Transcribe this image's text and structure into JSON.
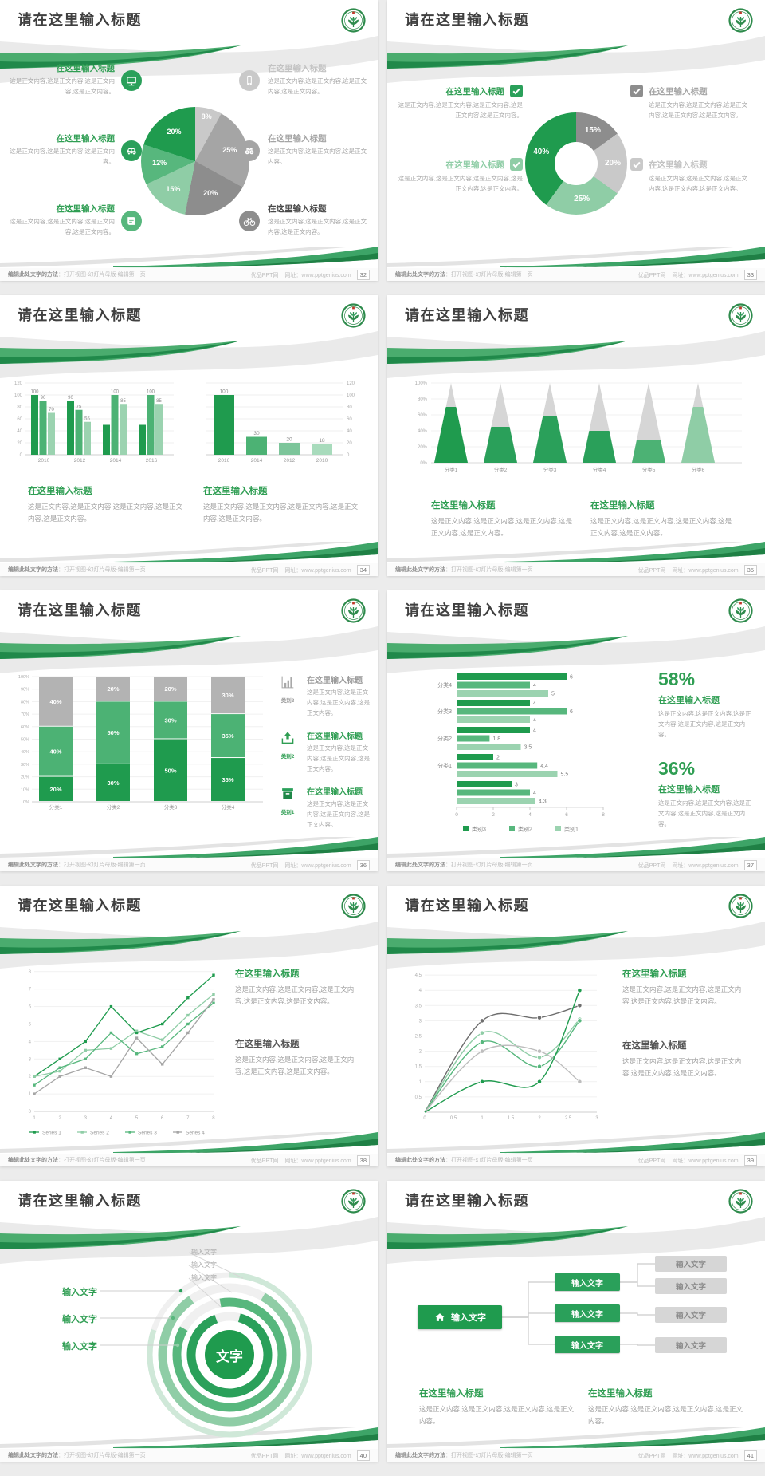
{
  "page": {
    "background": "#ececec",
    "grid": {
      "columns": 2,
      "rows": 5
    }
  },
  "theme": {
    "green_dark": "#1f9b4e",
    "green": "#2aa05a",
    "green_mid": "#57b77d",
    "green_light": "#8fcda6",
    "green_pale": "#cfe8d8",
    "gray_dark": "#8d8d8d",
    "gray": "#a5a5a5",
    "gray_light": "#c9c9c9",
    "title_text": "#3f3f3f",
    "body_text": "#a2a2a2"
  },
  "footer": {
    "left_strong": "编辑此处文字的方法",
    "left_rest": "：打开视图-幻灯片母版-编辑第一页",
    "site": "优品PPT网",
    "url": "网址：www.pptgenius.com"
  },
  "slides": [
    {
      "page": "32",
      "title": "请在这里输入标题",
      "callouts": [
        {
          "icon": "monitor-icon",
          "icon_bg": "#2aa05a",
          "title": "在这里输入标题",
          "title_color": "#2f9e53",
          "body": "这是正文内容,这是正文内容,这是正文内容,这是正文内容。"
        },
        {
          "icon": "car-icon",
          "icon_bg": "#2aa05a",
          "title": "在这里输入标题",
          "title_color": "#2f9e53",
          "body": "这是正文内容,这是正文内容,这是正文内容。"
        },
        {
          "icon": "book-icon",
          "icon_bg": "#57b77d",
          "title": "在这里输入标题",
          "title_color": "#2f9e53",
          "body": "这是正文内容,这是正文内容,这是正文内容,这是正文内容。"
        },
        {
          "icon": "phone-icon",
          "icon_bg": "#c9c9c9",
          "title": "在这里输入标题",
          "title_color": "#c3c3c3",
          "body": "这是正文内容,这是正文内容,这是正文内容,这是正文内容。"
        },
        {
          "icon": "binoculars-icon",
          "icon_bg": "#a5a5a5",
          "title": "在这里输入标题",
          "title_color": "#a5a5a5",
          "body": "这是正文内容,这是正文内容,这是正文内容。"
        },
        {
          "icon": "bicycle-icon",
          "icon_bg": "#8d8d8d",
          "title": "在这里输入标题",
          "title_color": "#4a4a4a",
          "body": "这是正文内容,这是正文内容,这是正文内容,这是正文内容。"
        }
      ]
    },
    {
      "page": "33",
      "title": "请在这里输入标题",
      "callouts": [
        {
          "icon": "check-icon",
          "icon_bg": "#2aa05a",
          "title": "在这里输入标题",
          "title_color": "#2f9e53",
          "body": "这是正文内容,这是正文内容,这是正文内容,这是正文内容,这是正文内容。"
        },
        {
          "icon": "check-icon",
          "icon_bg": "#8fcda6",
          "title": "在这里输入标题",
          "title_color": "#8fcda6",
          "body": "这是正文内容,这是正文内容,这是正文内容,这是正文内容,这是正文内容。"
        },
        {
          "icon": "check-icon",
          "icon_bg": "#8d8d8d",
          "title": "在这里输入标题",
          "title_color": "#a5a5a5",
          "body": "这是正文内容,这是正文内容,这是正文内容,这是正文内容,这是正文内容。"
        },
        {
          "icon": "check-icon",
          "icon_bg": "#c9c9c9",
          "title": "在这里输入标题",
          "title_color": "#c3c3c3",
          "body": "这是正文内容,这是正文内容,这是正文内容,这是正文内容,这是正文内容。"
        }
      ]
    },
    {
      "page": "34",
      "title": "请在这里输入标题",
      "sections": [
        {
          "title": "在这里输入标题",
          "title_color": "#2f9e53",
          "body": "这是正文内容,这是正文内容,这是正文内容,这是正文内容,这是正文内容。"
        },
        {
          "title": "在这里输入标题",
          "title_color": "#2f9e53",
          "body": "这是正文内容,这是正文内容,这是正文内容,这是正文内容,这是正文内容。"
        }
      ]
    },
    {
      "page": "35",
      "title": "请在这里输入标题",
      "sections": [
        {
          "title": "在这里输入标题",
          "title_color": "#2f9e53",
          "body": "这是正文内容,这是正文内容,这是正文内容,这是正文内容,这是正文内容。"
        },
        {
          "title": "在这里输入标题",
          "title_color": "#2f9e53",
          "body": "这是正文内容,这是正文内容,这是正文内容,这是正文内容,这是正文内容。"
        }
      ]
    },
    {
      "page": "36",
      "title": "请在这里输入标题",
      "items": [
        {
          "icon": "bar-chart-icon",
          "label": "类别3",
          "label_color": "#9a9a9a",
          "title": "在这里输入标题",
          "title_color": "#9a9a9a",
          "body": "这是正文内容,这是正文内容,这是正文内容,这是正文内容。"
        },
        {
          "icon": "upload-icon",
          "label": "类别2",
          "label_color": "#2f9e53",
          "title": "在这里输入标题",
          "title_color": "#2f9e53",
          "body": "这是正文内容,这是正文内容,这是正文内容,这是正文内容。"
        },
        {
          "icon": "box-icon",
          "label": "类别1",
          "label_color": "#2f9e53",
          "title": "在这里输入标题",
          "title_color": "#2f9e53",
          "body": "这是正文内容,这是正文内容,这是正文内容,这是正文内容。"
        }
      ]
    },
    {
      "page": "37",
      "title": "请在这里输入标题",
      "stats": [
        {
          "value": "58%",
          "title": "在这里输入标题",
          "body": "这是正文内容,这是正文内容,这是正文内容,这是正文内容,这是正文内容。"
        },
        {
          "value": "36%",
          "title": "在这里输入标题",
          "body": "这是正文内容,这是正文内容,这是正文内容,这是正文内容,这是正文内容。"
        }
      ]
    },
    {
      "page": "38",
      "title": "请在这里输入标题",
      "sections": [
        {
          "title": "在这里输入标题",
          "title_color": "#2f9e53",
          "body": "这是正文内容,这是正文内容,这是正文内容,这是正文内容,这是正文内容。"
        },
        {
          "title": "在这里输入标题",
          "title_color": "#555555",
          "body": "这是正文内容,这是正文内容,这是正文内容,这是正文内容,这是正文内容。"
        }
      ]
    },
    {
      "page": "39",
      "title": "请在这里输入标题",
      "sections": [
        {
          "title": "在这里输入标题",
          "title_color": "#2f9e53",
          "body": "这是正文内容,这是正文内容,这是正文内容,这是正文内容,这是正文内容。"
        },
        {
          "title": "在这里输入标题",
          "title_color": "#555555",
          "body": "这是正文内容,这是正文内容,这是正文内容,这是正文内容,这是正文内容。"
        }
      ]
    },
    {
      "page": "40",
      "title": "请在这里输入标题",
      "rings": {
        "center_label": "文字",
        "left_labels": [
          "输入文字",
          "输入文字",
          "输入文字"
        ],
        "top_labels": [
          "输入文字",
          "输入文字",
          "输入文字"
        ]
      }
    },
    {
      "page": "41",
      "title": "请在这里输入标题",
      "flow": {
        "root_label": "输入文字",
        "mid_labels": [
          "输入文字",
          "输入文字",
          "输入文字"
        ],
        "leaf_labels": [
          "输入文字",
          "输入文字",
          "输入文字",
          "输入文字"
        ]
      },
      "sections": [
        {
          "title": "在这里输入标题",
          "title_color": "#2f9e53",
          "body": "这是正文内容,这是正文内容,这是正文内容,这是正文内容。"
        },
        {
          "title": "在这里输入标题",
          "title_color": "#2f9e53",
          "body": "这是正文内容,这是正文内容,这是正文内容,这是正文内容。"
        }
      ]
    }
  ],
  "chart_data": [
    {
      "slide_page": "32",
      "type": "pie",
      "values": [
        8,
        25,
        20,
        15,
        12,
        20
      ],
      "labels": [
        "8%",
        "25%",
        "20%",
        "15%",
        "12%",
        "20%"
      ],
      "colors": [
        "#c9c9c9",
        "#a5a5a5",
        "#8d8d8d",
        "#8fcda6",
        "#57b77d",
        "#1f9b4e"
      ],
      "start": "top",
      "direction": "clockwise",
      "title": ""
    },
    {
      "slide_page": "33",
      "type": "pie",
      "subtype": "donut",
      "values": [
        15,
        20,
        25,
        40
      ],
      "labels": [
        "15%",
        "20%",
        "25%",
        "40%"
      ],
      "colors": [
        "#8d8d8d",
        "#c9c9c9",
        "#8fcda6",
        "#1f9b4e"
      ],
      "title": ""
    },
    {
      "slide_page": "34",
      "type": "bar",
      "position": "left",
      "categories": [
        "2010",
        "2012",
        "2014",
        "2016"
      ],
      "series": [
        {
          "name": "series-1",
          "color": "#1f9b4e",
          "values": [
            100,
            90,
            50,
            50
          ],
          "labels": [
            "100",
            "90",
            "",
            ""
          ]
        },
        {
          "name": "series-2",
          "color": "#4cb274",
          "values": [
            90,
            75,
            100,
            100
          ],
          "labels": [
            "90",
            "75",
            "100",
            "100"
          ]
        },
        {
          "name": "series-3",
          "color": "#9bd3b0",
          "values": [
            70,
            55,
            85,
            85
          ],
          "labels": [
            "70",
            "55",
            "85",
            "85"
          ]
        }
      ],
      "ylim": [
        0,
        120
      ],
      "yticks": [
        0,
        20,
        40,
        60,
        80,
        100,
        120
      ],
      "axis_side": "left",
      "title": ""
    },
    {
      "slide_page": "34",
      "type": "bar",
      "position": "right",
      "categories": [
        "2016",
        "2014",
        "2012",
        "2010"
      ],
      "values": [
        100,
        30,
        20,
        18
      ],
      "labels": [
        "100",
        "30",
        "20",
        "18"
      ],
      "bar_colors": [
        "#1f9b4e",
        "#4cb274",
        "#7cc59a",
        "#a8dbbc"
      ],
      "ylim": [
        0,
        120
      ],
      "yticks": [
        0,
        20,
        40,
        60,
        80,
        100,
        120
      ],
      "axis_side": "right",
      "title": ""
    },
    {
      "slide_page": "35",
      "type": "cone",
      "categories": [
        "分类1",
        "分类2",
        "分类3",
        "分类4",
        "分类5",
        "分类6"
      ],
      "values_pct": [
        70,
        45,
        58,
        40,
        28,
        70
      ],
      "fill_colors": [
        "#1f9b4e",
        "#2aa05a",
        "#2aa05a",
        "#2aa05a",
        "#4cb274",
        "#8fcda6"
      ],
      "cone_bg": "#d6d6d6",
      "yticks": [
        "0%",
        "20%",
        "40%",
        "60%",
        "80%",
        "100%"
      ],
      "title": ""
    },
    {
      "slide_page": "36",
      "type": "stacked_bar",
      "categories": [
        "分类1",
        "分类2",
        "分类3",
        "分类4"
      ],
      "series": [
        {
          "name": "类别1",
          "color": "#1f9b4e",
          "values": [
            20,
            30,
            50,
            35
          ]
        },
        {
          "name": "类别2",
          "color": "#4cb274",
          "values": [
            40,
            50,
            30,
            35
          ]
        },
        {
          "name": "类别3",
          "color": "#b3b3b3",
          "values": [
            40,
            20,
            20,
            30
          ]
        }
      ],
      "yticks": [
        "0%",
        "10%",
        "20%",
        "30%",
        "40%",
        "50%",
        "60%",
        "70%",
        "80%",
        "90%",
        "100%"
      ],
      "title": ""
    },
    {
      "slide_page": "37",
      "type": "hbar",
      "categories": [
        "分类4",
        "分类3",
        "分类2",
        "分类1",
        ""
      ],
      "series": [
        {
          "name": "类别3",
          "color": "#1f9b4e",
          "values": [
            6,
            4,
            4,
            2,
            3
          ]
        },
        {
          "name": "类别2",
          "color": "#57b77d",
          "values": [
            4,
            6,
            1.8,
            4.4,
            4
          ]
        },
        {
          "name": "类别1",
          "color": "#9bd3b0",
          "values": [
            5,
            4,
            3.5,
            5.5,
            4.3
          ]
        }
      ],
      "xticks": [
        0,
        2,
        4,
        6,
        8
      ],
      "xlim": [
        0,
        8
      ],
      "legend": [
        "类别3",
        "类别2",
        "类别1"
      ],
      "legend_position": "bottom",
      "title": ""
    },
    {
      "slide_page": "38",
      "type": "line",
      "x": [
        1,
        2,
        3,
        4,
        5,
        6,
        7,
        8
      ],
      "ylim": [
        0,
        8
      ],
      "yticks": [
        0,
        1,
        2,
        3,
        4,
        5,
        6,
        7,
        8
      ],
      "series": [
        {
          "name": "Series 1",
          "color": "#1f9b4e",
          "values": [
            2,
            3,
            4,
            6,
            4.5,
            5,
            6.5,
            7.8
          ]
        },
        {
          "name": "Series 2",
          "color": "#8fcda6",
          "values": [
            2,
            2.3,
            3.5,
            3.6,
            4.6,
            4.1,
            5.5,
            6.7
          ]
        },
        {
          "name": "Series 3",
          "color": "#57b77d",
          "values": [
            1.5,
            2.5,
            3,
            4.5,
            3.3,
            3.7,
            5,
            6.2
          ]
        },
        {
          "name": "Series 4",
          "color": "#a5a5a5",
          "values": [
            1,
            2,
            2.5,
            2,
            4.2,
            2.7,
            4.5,
            6.4
          ]
        }
      ],
      "legend_position": "bottom",
      "values_estimated": true,
      "title": ""
    },
    {
      "slide_page": "39",
      "type": "line",
      "subtype": "smooth",
      "x": [
        0,
        1,
        2,
        2.7
      ],
      "xticks": [
        0,
        0.5,
        1,
        1.5,
        2,
        2.5,
        3
      ],
      "ylim": [
        0,
        4.5
      ],
      "yticks": [
        0.5,
        1,
        1.5,
        2,
        2.5,
        3,
        3.5,
        4,
        4.5
      ],
      "series": [
        {
          "name": "series-1",
          "color": "#6e6e6e",
          "values": [
            0,
            3,
            3.1,
            3.5
          ]
        },
        {
          "name": "series-2",
          "color": "#8fcda6",
          "values": [
            0,
            2.6,
            1.8,
            3.05
          ]
        },
        {
          "name": "series-3",
          "color": "#57b77d",
          "values": [
            0,
            2.3,
            1.5,
            3
          ]
        },
        {
          "name": "series-4",
          "color": "#bdbdbd",
          "values": [
            0,
            2,
            2,
            1
          ]
        },
        {
          "name": "series-5",
          "color": "#1f9b4e",
          "values": [
            0,
            1,
            1,
            4
          ]
        }
      ],
      "values_estimated": true,
      "title": ""
    }
  ]
}
